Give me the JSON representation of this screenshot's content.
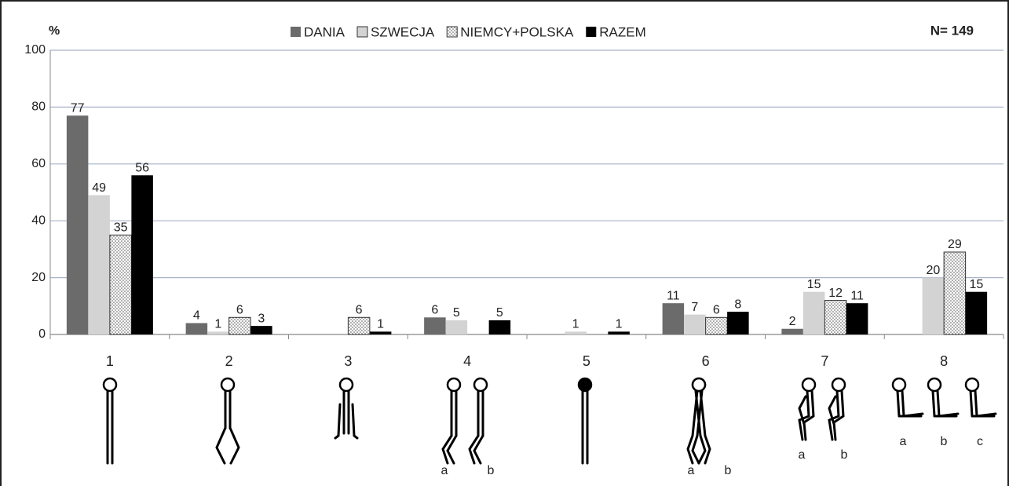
{
  "chart_data": {
    "type": "bar",
    "y_label": "%",
    "annotation": "N= 149",
    "categories": [
      "1",
      "2",
      "3",
      "4",
      "5",
      "6",
      "7",
      "8"
    ],
    "series": [
      {
        "name": "DANIA",
        "color": "#6b6b6b",
        "values": [
          77,
          4,
          null,
          6,
          null,
          11,
          2,
          null
        ]
      },
      {
        "name": "SZWECJA",
        "color": "#d3d3d3",
        "values": [
          49,
          1,
          null,
          5,
          1,
          7,
          15,
          20
        ]
      },
      {
        "name": "NIEMCY+POLSKA",
        "color": "#ffffff",
        "pattern": "dots",
        "values": [
          35,
          6,
          6,
          null,
          null,
          6,
          12,
          29
        ]
      },
      {
        "name": "RAZEM",
        "color": "#000000",
        "values": [
          56,
          3,
          1,
          5,
          1,
          8,
          11,
          15
        ]
      }
    ],
    "sublabels": [
      [],
      [],
      [],
      [
        "a",
        "b"
      ],
      [],
      [
        "a",
        "b"
      ],
      [
        "a",
        "b"
      ],
      [
        "a",
        "b",
        "c"
      ]
    ],
    "ylim": [
      0,
      100
    ],
    "yticks": [
      0,
      20,
      40,
      60,
      80,
      100
    ],
    "grid": true
  }
}
